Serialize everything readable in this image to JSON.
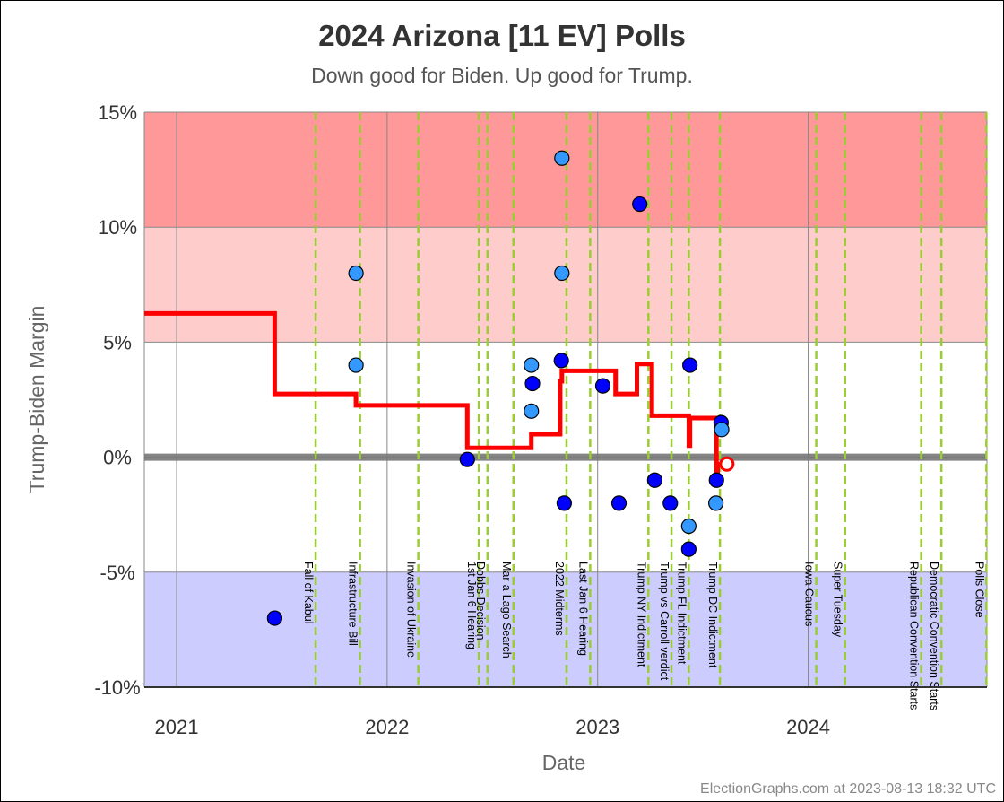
{
  "chart_data": {
    "type": "scatter",
    "title": "2024 Arizona [11 EV] Polls",
    "subtitle": "Down good for Biden. Up good for Trump.",
    "xlabel": "Date",
    "ylabel": "Trump-Biden Margin",
    "credit": "ElectionGraphs.com at 2023-08-13 18:32 UTC",
    "x_range": [
      "2020-11-06",
      "2024-11-06"
    ],
    "ylim": [
      -10,
      15
    ],
    "y_ticks": [
      {
        "value": 15,
        "label": "15%"
      },
      {
        "value": 10,
        "label": "10%"
      },
      {
        "value": 5,
        "label": "5%"
      },
      {
        "value": 0,
        "label": "0%"
      },
      {
        "value": -5,
        "label": "-5%"
      },
      {
        "value": -10,
        "label": "-10%"
      }
    ],
    "x_ticks": [
      {
        "date": "2021-01-01",
        "label": "2021"
      },
      {
        "date": "2022-01-01",
        "label": "2022"
      },
      {
        "date": "2023-01-01",
        "label": "2023"
      },
      {
        "date": "2024-01-01",
        "label": "2024"
      }
    ],
    "bands": [
      {
        "from": 10,
        "to": 15,
        "color": "#ff9999"
      },
      {
        "from": 5,
        "to": 10,
        "color": "#ffcccc"
      },
      {
        "from": -10,
        "to": -5,
        "color": "#ccccff"
      }
    ],
    "colors": {
      "poll_dark": "#0000ff",
      "poll_light": "#3399ff",
      "average_line": "#ff0000",
      "event_line": "#9acd32",
      "zero_line": "#777777"
    },
    "events": [
      {
        "date": "2021-08-30",
        "label": "Fall of Kabul"
      },
      {
        "date": "2021-11-15",
        "label": "Infrastructure Bill"
      },
      {
        "date": "2022-02-24",
        "label": "Invasion of Ukraine"
      },
      {
        "date": "2022-06-09",
        "label": "1st Jan 6 Hearing"
      },
      {
        "date": "2022-06-24",
        "label": "Dobbs Decision"
      },
      {
        "date": "2022-08-08",
        "label": "Mar-a-Lago Search"
      },
      {
        "date": "2022-11-08",
        "label": "2022 Midterms"
      },
      {
        "date": "2022-12-19",
        "label": "Last Jan 6 Hearing"
      },
      {
        "date": "2023-03-30",
        "label": "Trump NY Indictment"
      },
      {
        "date": "2023-05-09",
        "label": "Trump vs Carroll verdict"
      },
      {
        "date": "2023-06-08",
        "label": "Trump FL Indictment"
      },
      {
        "date": "2023-08-01",
        "label": "Trump DC Indictment"
      },
      {
        "date": "2024-01-15",
        "label": "Iowa Caucus"
      },
      {
        "date": "2024-03-05",
        "label": "Super Tuesday"
      },
      {
        "date": "2024-07-15",
        "label": "Republican Convention Starts"
      },
      {
        "date": "2024-08-19",
        "label": "Democratic Convention Starts"
      },
      {
        "date": "2024-11-05",
        "label": "Polls Close"
      }
    ],
    "series": [
      {
        "marker": "dark",
        "points": [
          {
            "x": "2021-06-20",
            "y": -7
          },
          {
            "x": "2022-05-20",
            "y": -0.1
          },
          {
            "x": "2022-09-10",
            "y": 3.2
          },
          {
            "x": "2022-10-30",
            "y": 4.2
          },
          {
            "x": "2022-11-04",
            "y": -2
          },
          {
            "x": "2023-01-10",
            "y": 3.1
          },
          {
            "x": "2023-02-07",
            "y": -2
          },
          {
            "x": "2023-03-15",
            "y": 11
          },
          {
            "x": "2023-04-10",
            "y": -1
          },
          {
            "x": "2023-05-07",
            "y": -2
          },
          {
            "x": "2023-06-08",
            "y": -4
          },
          {
            "x": "2023-06-10",
            "y": 4
          },
          {
            "x": "2023-07-26",
            "y": -1
          },
          {
            "x": "2023-08-03",
            "y": 1.5
          }
        ]
      },
      {
        "marker": "light",
        "points": [
          {
            "x": "2021-11-08",
            "y": 8
          },
          {
            "x": "2021-11-08",
            "y": 4
          },
          {
            "x": "2022-09-08",
            "y": 4
          },
          {
            "x": "2022-09-08",
            "y": 2
          },
          {
            "x": "2022-10-31",
            "y": 13
          },
          {
            "x": "2022-10-31",
            "y": 8
          },
          {
            "x": "2023-06-08",
            "y": -3
          },
          {
            "x": "2023-07-25",
            "y": -2
          },
          {
            "x": "2023-08-04",
            "y": 1.2
          }
        ]
      },
      {
        "marker": "open-red",
        "points": [
          {
            "x": "2023-08-13",
            "y": -0.3
          }
        ]
      }
    ],
    "average_line": [
      {
        "x": "2020-11-06",
        "y": 6.25
      },
      {
        "x": "2021-06-20",
        "y": 6.25
      },
      {
        "x": "2021-06-20",
        "y": 2.75
      },
      {
        "x": "2021-11-08",
        "y": 2.75
      },
      {
        "x": "2021-11-08",
        "y": 2.25
      },
      {
        "x": "2022-05-20",
        "y": 2.25
      },
      {
        "x": "2022-05-20",
        "y": 0.4
      },
      {
        "x": "2022-09-08",
        "y": 0.4
      },
      {
        "x": "2022-09-08",
        "y": 1.0
      },
      {
        "x": "2022-10-28",
        "y": 1.0
      },
      {
        "x": "2022-10-28",
        "y": 3.3
      },
      {
        "x": "2022-10-31",
        "y": 3.3
      },
      {
        "x": "2022-10-31",
        "y": 3.75
      },
      {
        "x": "2023-02-01",
        "y": 3.75
      },
      {
        "x": "2023-02-01",
        "y": 2.75
      },
      {
        "x": "2023-03-10",
        "y": 2.75
      },
      {
        "x": "2023-03-10",
        "y": 4.05
      },
      {
        "x": "2023-04-05",
        "y": 4.05
      },
      {
        "x": "2023-04-05",
        "y": 1.8
      },
      {
        "x": "2023-06-08",
        "y": 1.8
      },
      {
        "x": "2023-06-08",
        "y": 0.5
      },
      {
        "x": "2023-06-10",
        "y": 0.5
      },
      {
        "x": "2023-06-10",
        "y": 1.7
      },
      {
        "x": "2023-07-26",
        "y": 1.7
      },
      {
        "x": "2023-07-26",
        "y": -0.8
      },
      {
        "x": "2023-07-28",
        "y": -0.8
      },
      {
        "x": "2023-07-28",
        "y": -0.3
      },
      {
        "x": "2023-08-13",
        "y": -0.3
      }
    ]
  }
}
